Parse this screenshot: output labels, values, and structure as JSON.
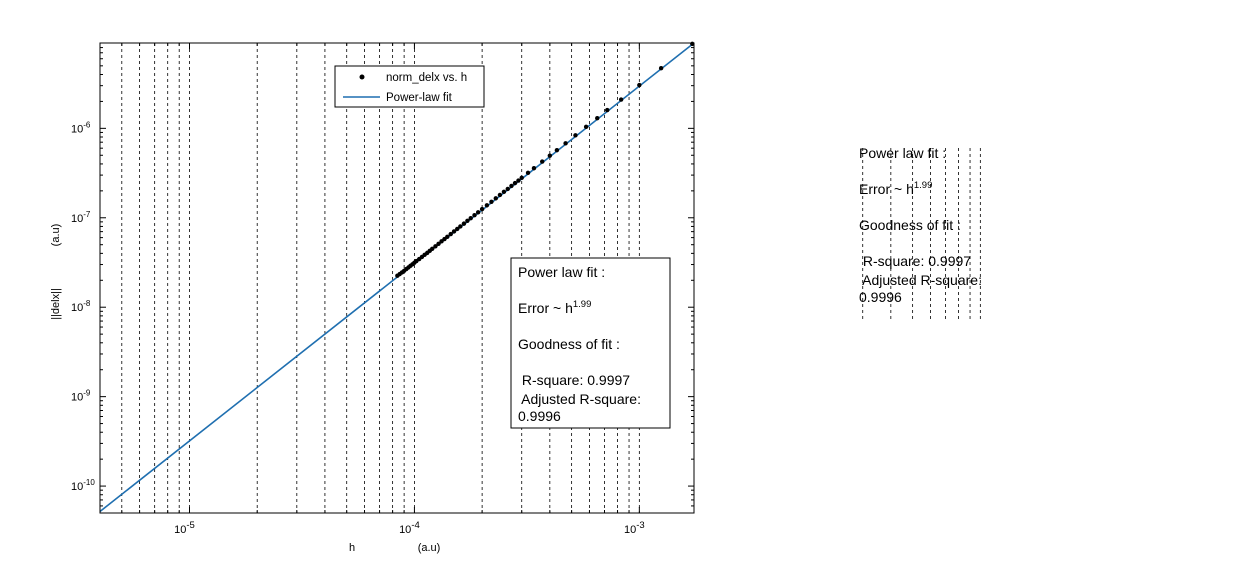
{
  "chart_data": {
    "type": "scatter",
    "xscale": "log",
    "yscale": "log",
    "xlim": [
      4e-06,
      0.00175
    ],
    "ylim": [
      5e-11,
      9e-06
    ],
    "grid": {
      "x_major": true,
      "x_minor": true,
      "y": false,
      "style": "dashed"
    },
    "xlabel": "h",
    "xlabel_unit": "(a.u)",
    "ylabel": "||delx||",
    "ylabel_unit": "(a.u)",
    "x_ticks": [
      {
        "value": 1e-05,
        "base": "10",
        "exp": "-5"
      },
      {
        "value": 0.0001,
        "base": "10",
        "exp": "-4"
      },
      {
        "value": 0.001,
        "base": "10",
        "exp": "-3"
      }
    ],
    "y_ticks": [
      {
        "value": 1e-10,
        "base": "10",
        "exp": "-10"
      },
      {
        "value": 1e-09,
        "base": "10",
        "exp": "-9"
      },
      {
        "value": 1e-08,
        "base": "10",
        "exp": "-8"
      },
      {
        "value": 1e-07,
        "base": "10",
        "exp": "-7"
      },
      {
        "value": 1e-06,
        "base": "10",
        "exp": "-6"
      }
    ],
    "legend": {
      "placement": "top-center",
      "entries": [
        {
          "label": "norm_delx vs. h",
          "marker": "dot"
        },
        {
          "label": "Power-law fit",
          "marker": "line"
        }
      ]
    },
    "series": [
      {
        "name": "norm_delx vs. h",
        "style": "markers",
        "color": "#000000",
        "x": [
          8.4e-05,
          8.6e-05,
          8.8e-05,
          9e-05,
          9.2e-05,
          9.4e-05,
          9.6e-05,
          9.8e-05,
          0.0001,
          0.000102,
          0.000105,
          0.000108,
          0.000111,
          0.000114,
          0.000117,
          0.00012,
          0.000124,
          0.000128,
          0.000132,
          0.000136,
          0.00014,
          0.000145,
          0.00015,
          0.000155,
          0.00016,
          0.000166,
          0.000172,
          0.000178,
          0.000185,
          0.000192,
          0.0002,
          0.00021,
          0.00022,
          0.00023,
          0.00024,
          0.00025,
          0.00026,
          0.00027,
          0.00028,
          0.00029,
          0.0003,
          0.00032,
          0.00034,
          0.00037,
          0.0004,
          0.00043,
          0.00047,
          0.00052,
          0.00058,
          0.00065,
          0.00072,
          0.00083,
          0.001,
          0.00125,
          0.00172
        ],
        "y": [
          2.25e-08,
          2.35e-08,
          2.45e-08,
          2.55e-08,
          2.67e-08,
          2.78e-08,
          2.9e-08,
          3.02e-08,
          3.15e-08,
          3.28e-08,
          3.45e-08,
          3.65e-08,
          3.85e-08,
          4.05e-08,
          4.27e-08,
          4.5e-08,
          4.8e-08,
          5.12e-08,
          5.45e-08,
          5.78e-08,
          6.12e-08,
          6.57e-08,
          7.03e-08,
          7.5e-08,
          8e-08,
          8.6e-08,
          9.25e-08,
          9.9e-08,
          1.07e-07,
          1.15e-07,
          1.25e-07,
          1.38e-07,
          1.51e-07,
          1.65e-07,
          1.8e-07,
          1.95e-07,
          2.1e-07,
          2.27e-07,
          2.44e-07,
          2.61e-07,
          2.8e-07,
          3.18e-07,
          3.58e-07,
          4.25e-07,
          4.95e-07,
          5.7e-07,
          6.8e-07,
          8.35e-07,
          1.04e-06,
          1.3e-06,
          1.6e-06,
          2.1e-06,
          3.05e-06,
          4.7e-06,
          8.8e-06
        ]
      },
      {
        "name": "Power-law fit",
        "style": "line",
        "color": "#1f6fb0",
        "x": [
          4e-06,
          0.00175
        ],
        "y": [
          5.2e-11,
          9e-06
        ]
      }
    ],
    "annotation": {
      "lines": [
        {
          "text": "Power law fit :"
        },
        {
          "text": "Error ~ h",
          "sup": "1.99"
        },
        {
          "text": "Goodness of fit :"
        },
        {
          "text": " R-square: 0.9997"
        },
        {
          "text": " Adjusted R-square:"
        },
        {
          "text": "0.9996"
        }
      ]
    }
  }
}
